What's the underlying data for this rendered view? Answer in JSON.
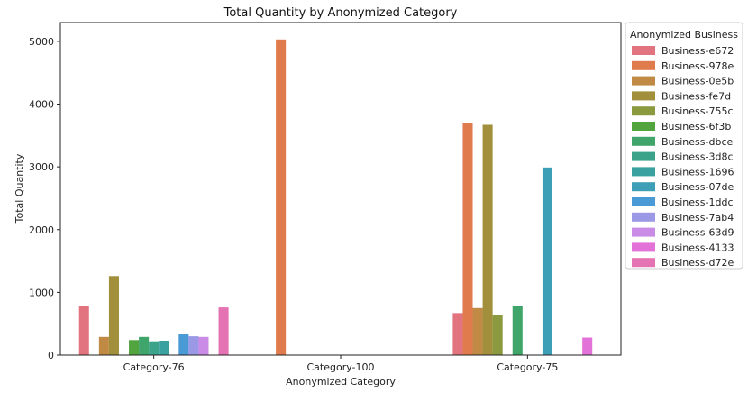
{
  "chart_data": {
    "type": "bar",
    "title": "Total Quantity by Anonymized Category",
    "xlabel": "Anonymized Category",
    "ylabel": "Total Quantity",
    "ylim": [
      0,
      5300
    ],
    "yticks": [
      0,
      1000,
      2000,
      3000,
      4000,
      5000
    ],
    "grid": false,
    "legend_title": "Anonymized Business",
    "legend_position": "right, outside plot",
    "categories": [
      "Category-76",
      "Category-100",
      "Category-75"
    ],
    "series": [
      {
        "name": "Business-e672",
        "color": "#e1747f",
        "values": [
          780,
          null,
          670
        ]
      },
      {
        "name": "Business-978e",
        "color": "#e07b4e",
        "values": [
          null,
          5030,
          3700
        ]
      },
      {
        "name": "Business-0e5b",
        "color": "#c08a45",
        "values": [
          290,
          null,
          750
        ]
      },
      {
        "name": "Business-fe7d",
        "color": "#a18f3c",
        "values": [
          1260,
          null,
          3670
        ]
      },
      {
        "name": "Business-755c",
        "color": "#8b9a3f",
        "values": [
          null,
          null,
          640
        ]
      },
      {
        "name": "Business-6f3b",
        "color": "#52a43f",
        "values": [
          240,
          null,
          null
        ]
      },
      {
        "name": "Business-dbce",
        "color": "#3fa56b",
        "values": [
          290,
          null,
          780
        ]
      },
      {
        "name": "Business-3d8c",
        "color": "#3aa38a",
        "values": [
          220,
          null,
          null
        ]
      },
      {
        "name": "Business-1696",
        "color": "#3aa0a0",
        "values": [
          230,
          null,
          null
        ]
      },
      {
        "name": "Business-07de",
        "color": "#3c9fb6",
        "values": [
          null,
          null,
          2990
        ]
      },
      {
        "name": "Business-1ddc",
        "color": "#4a9ad6",
        "values": [
          330,
          null,
          null
        ]
      },
      {
        "name": "Business-7ab4",
        "color": "#9b99e6",
        "values": [
          300,
          null,
          null
        ]
      },
      {
        "name": "Business-63d9",
        "color": "#c98be6",
        "values": [
          290,
          null,
          null
        ]
      },
      {
        "name": "Business-4133",
        "color": "#e372d8",
        "values": [
          null,
          null,
          280
        ]
      },
      {
        "name": "Business-d72e",
        "color": "#e572b2",
        "values": [
          760,
          null,
          null
        ]
      }
    ]
  }
}
